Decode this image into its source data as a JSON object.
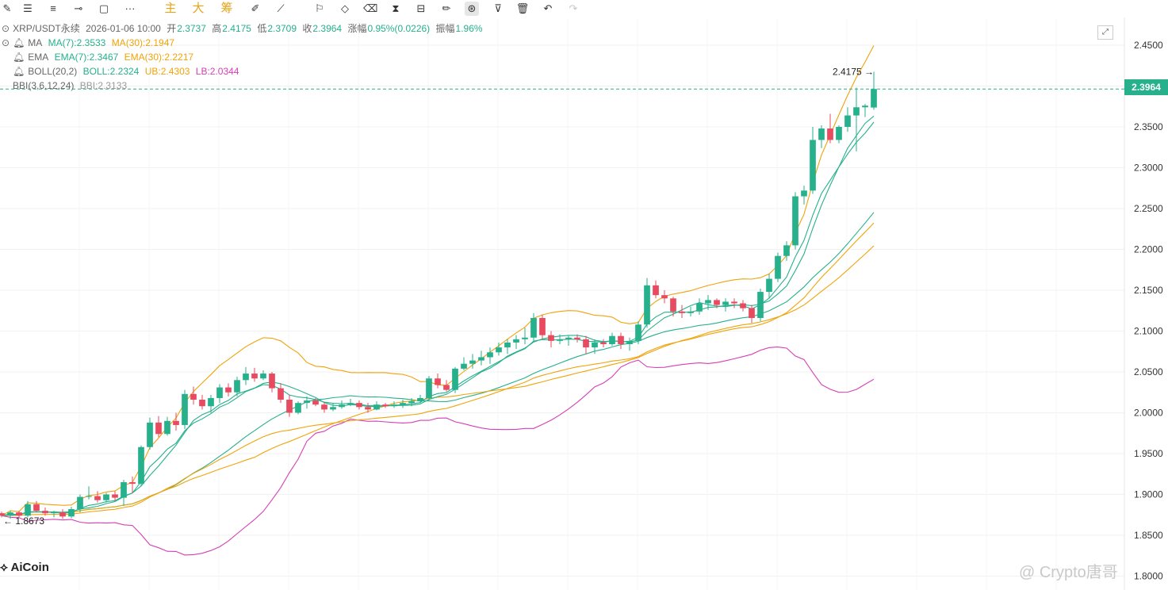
{
  "toolbar": {
    "icons": [
      "pencil-icon",
      "align-icon",
      "menu-icon",
      "hline-icon",
      "rect-icon",
      "more-dots-icon"
    ],
    "cn_buttons": [
      "主",
      "大",
      "筹"
    ],
    "tools": [
      "note-icon",
      "ruler-icon",
      "eraser-icon",
      "compare-icon",
      "lock-icon",
      "edit-icon",
      "magnet-icon",
      "filter-icon",
      "trash-icon",
      "undo-icon",
      "redo-icon"
    ]
  },
  "header": {
    "symbol": "XRP/USDT永续",
    "datetime": "2026-01-06 10:00",
    "open_label": "开",
    "open": "2.3737",
    "high_label": "高",
    "high": "2.4175",
    "low_label": "低",
    "low": "2.3709",
    "close_label": "收",
    "close": "2.3964",
    "change_label": "涨幅",
    "change": "0.95%(0.0226)",
    "amp_label": "振幅",
    "amp": "1.96%"
  },
  "indicators": {
    "ma": {
      "name": "MA",
      "ma7": "MA(7):2.3533",
      "ma30": "MA(30):2.1947"
    },
    "ema": {
      "name": "EMA",
      "ema7": "EMA(7):2.3467",
      "ema30": "EMA(30):2.2217"
    },
    "boll": {
      "name": "BOLL(20,2)",
      "boll": "BOLL:2.2324",
      "ub": "UB:2.4303",
      "lb": "LB:2.0344"
    },
    "bbi": {
      "name": "BBI(3,6,12,24)",
      "bbi": "BBI:2.3133"
    }
  },
  "colors": {
    "up": "#26b08c",
    "down": "#e84a5f",
    "ma7": "#26b08c",
    "ma30": "#f0a30a",
    "ub": "#f0a30a",
    "lb": "#d63fb4",
    "boll": "#26b08c",
    "bbi": "#aaaaaa"
  },
  "current_price": "2.3964",
  "high_marker": "2.4175",
  "low_marker": "1.8673",
  "logo": "AiCoin",
  "watermark": "@ Crypto唐哥",
  "chart_data": {
    "type": "candlestick",
    "y_ticks": [
      "2.4500",
      "2.4000",
      "2.3500",
      "2.3000",
      "2.2500",
      "2.2000",
      "2.1500",
      "2.1000",
      "2.0500",
      "2.0000",
      "1.9500",
      "1.9000",
      "1.8500",
      "1.8000"
    ],
    "ylim": [
      1.8,
      2.45
    ],
    "candles": [
      [
        1.877,
        1.879,
        1.872,
        1.874
      ],
      [
        1.874,
        1.88,
        1.87,
        1.878
      ],
      [
        1.878,
        1.88,
        1.872,
        1.874
      ],
      [
        1.874,
        1.892,
        1.872,
        1.888
      ],
      [
        1.888,
        1.892,
        1.878,
        1.88
      ],
      [
        1.88,
        1.884,
        1.874,
        1.877
      ],
      [
        1.877,
        1.88,
        1.872,
        1.878
      ],
      [
        1.878,
        1.882,
        1.87,
        1.873
      ],
      [
        1.873,
        1.885,
        1.871,
        1.882
      ],
      [
        1.882,
        1.9,
        1.878,
        1.897
      ],
      [
        1.897,
        1.91,
        1.894,
        1.898
      ],
      [
        1.898,
        1.904,
        1.89,
        1.893
      ],
      [
        1.893,
        1.902,
        1.89,
        1.9
      ],
      [
        1.9,
        1.904,
        1.892,
        1.896
      ],
      [
        1.896,
        1.918,
        1.886,
        1.915
      ],
      [
        1.915,
        1.922,
        1.902,
        1.913
      ],
      [
        1.913,
        1.96,
        1.91,
        1.958
      ],
      [
        1.958,
        1.994,
        1.955,
        1.988
      ],
      [
        1.988,
        1.996,
        1.97,
        1.974
      ],
      [
        1.974,
        1.995,
        1.972,
        1.99
      ],
      [
        1.99,
        2.0,
        1.978,
        1.985
      ],
      [
        1.985,
        2.028,
        1.98,
        2.023
      ],
      [
        2.023,
        2.032,
        2.01,
        2.016
      ],
      [
        2.016,
        2.022,
        2.004,
        2.008
      ],
      [
        2.008,
        2.022,
        2.0,
        2.018
      ],
      [
        2.018,
        2.035,
        2.012,
        2.031
      ],
      [
        2.031,
        2.036,
        2.02,
        2.025
      ],
      [
        2.025,
        2.044,
        2.02,
        2.04
      ],
      [
        2.04,
        2.056,
        2.034,
        2.048
      ],
      [
        2.048,
        2.055,
        2.038,
        2.042
      ],
      [
        2.042,
        2.052,
        2.04,
        2.048
      ],
      [
        2.048,
        2.05,
        2.025,
        2.03
      ],
      [
        2.03,
        2.036,
        2.012,
        2.016
      ],
      [
        2.016,
        2.022,
        1.995,
        2.0
      ],
      [
        2.0,
        2.014,
        1.998,
        2.012
      ],
      [
        2.012,
        2.02,
        2.005,
        2.015
      ],
      [
        2.015,
        2.018,
        2.008,
        2.01
      ],
      [
        2.01,
        2.013,
        2.0,
        2.004
      ],
      [
        2.004,
        2.012,
        2.002,
        2.007
      ],
      [
        2.007,
        2.015,
        2.005,
        2.01
      ],
      [
        2.01,
        2.017,
        2.008,
        2.012
      ],
      [
        2.012,
        2.015,
        2.004,
        2.007
      ],
      [
        2.007,
        2.012,
        2.0,
        2.004
      ],
      [
        2.004,
        2.014,
        2.003,
        2.01
      ],
      [
        2.01,
        2.012,
        2.006,
        2.008
      ],
      [
        2.008,
        2.014,
        2.006,
        2.01
      ],
      [
        2.01,
        2.016,
        2.006,
        2.012
      ],
      [
        2.012,
        2.018,
        2.008,
        2.014
      ],
      [
        2.014,
        2.022,
        2.012,
        2.018
      ],
      [
        2.018,
        2.045,
        2.015,
        2.042
      ],
      [
        2.042,
        2.048,
        2.03,
        2.034
      ],
      [
        2.034,
        2.04,
        2.026,
        2.028
      ],
      [
        2.028,
        2.056,
        2.024,
        2.054
      ],
      [
        2.054,
        2.068,
        2.052,
        2.06
      ],
      [
        2.06,
        2.072,
        2.054,
        2.064
      ],
      [
        2.064,
        2.076,
        2.058,
        2.068
      ],
      [
        2.068,
        2.08,
        2.06,
        2.074
      ],
      [
        2.074,
        2.086,
        2.07,
        2.08
      ],
      [
        2.08,
        2.09,
        2.072,
        2.086
      ],
      [
        2.086,
        2.095,
        2.078,
        2.09
      ],
      [
        2.09,
        2.104,
        2.084,
        2.092
      ],
      [
        2.092,
        2.122,
        2.088,
        2.116
      ],
      [
        2.116,
        2.12,
        2.09,
        2.095
      ],
      [
        2.095,
        2.1,
        2.08,
        2.088
      ],
      [
        2.088,
        2.096,
        2.084,
        2.09
      ],
      [
        2.09,
        2.094,
        2.082,
        2.092
      ],
      [
        2.092,
        2.096,
        2.086,
        2.09
      ],
      [
        2.09,
        2.094,
        2.072,
        2.08
      ],
      [
        2.08,
        2.09,
        2.072,
        2.086
      ],
      [
        2.086,
        2.09,
        2.08,
        2.084
      ],
      [
        2.084,
        2.098,
        2.082,
        2.094
      ],
      [
        2.094,
        2.098,
        2.078,
        2.084
      ],
      [
        2.084,
        2.092,
        2.076,
        2.088
      ],
      [
        2.088,
        2.112,
        2.084,
        2.108
      ],
      [
        2.108,
        2.165,
        2.104,
        2.156
      ],
      [
        2.156,
        2.162,
        2.14,
        2.144
      ],
      [
        2.144,
        2.15,
        2.134,
        2.14
      ],
      [
        2.14,
        2.142,
        2.118,
        2.124
      ],
      [
        2.124,
        2.132,
        2.116,
        2.122
      ],
      [
        2.122,
        2.13,
        2.118,
        2.124
      ],
      [
        2.124,
        2.14,
        2.12,
        2.134
      ],
      [
        2.134,
        2.144,
        2.126,
        2.138
      ],
      [
        2.138,
        2.14,
        2.128,
        2.132
      ],
      [
        2.132,
        2.14,
        2.124,
        2.136
      ],
      [
        2.136,
        2.14,
        2.128,
        2.134
      ],
      [
        2.134,
        2.138,
        2.124,
        2.128
      ],
      [
        2.128,
        2.132,
        2.11,
        2.116
      ],
      [
        2.116,
        2.152,
        2.112,
        2.148
      ],
      [
        2.148,
        2.17,
        2.14,
        2.164
      ],
      [
        2.164,
        2.196,
        2.16,
        2.192
      ],
      [
        2.192,
        2.21,
        2.186,
        2.205
      ],
      [
        2.205,
        2.27,
        2.2,
        2.265
      ],
      [
        2.265,
        2.278,
        2.255,
        2.272
      ],
      [
        2.272,
        2.35,
        2.268,
        2.334
      ],
      [
        2.334,
        2.352,
        2.324,
        2.348
      ],
      [
        2.348,
        2.366,
        2.33,
        2.334
      ],
      [
        2.334,
        2.352,
        2.33,
        2.35
      ],
      [
        2.35,
        2.374,
        2.344,
        2.364
      ],
      [
        2.364,
        2.398,
        2.32,
        2.374
      ],
      [
        2.374,
        2.378,
        2.362,
        2.376
      ],
      [
        2.3737,
        2.4175,
        2.3709,
        2.3964
      ]
    ],
    "series": [
      {
        "name": "MA(7)",
        "values": []
      },
      {
        "name": "MA(30)",
        "values": []
      },
      {
        "name": "EMA(7)",
        "values": []
      },
      {
        "name": "EMA(30)",
        "values": []
      },
      {
        "name": "BOLL",
        "values": []
      },
      {
        "name": "UB",
        "values": []
      },
      {
        "name": "LB",
        "values": []
      }
    ]
  }
}
